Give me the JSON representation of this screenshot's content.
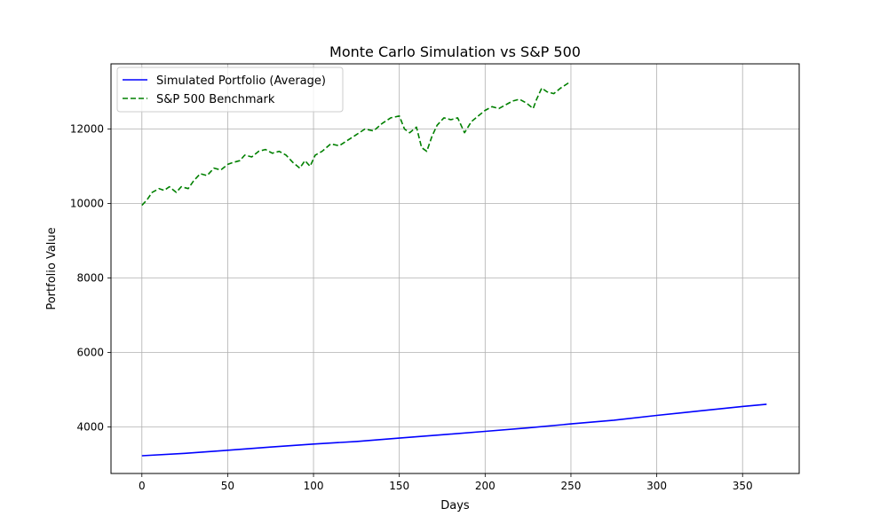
{
  "chart_data": {
    "type": "line",
    "title": "Monte Carlo Simulation vs S&P 500",
    "xlabel": "Days",
    "ylabel": "Portfolio Value",
    "xlim": [
      -18,
      383
    ],
    "ylim": [
      2750,
      13750
    ],
    "xticks": [
      0,
      50,
      100,
      150,
      200,
      250,
      300,
      350
    ],
    "yticks": [
      4000,
      6000,
      8000,
      10000,
      12000
    ],
    "grid": true,
    "legend_position": "top-left",
    "series": [
      {
        "name": "Simulated Portfolio (Average)",
        "color": "#0000ff",
        "style": "solid",
        "x": [
          0,
          25,
          50,
          75,
          100,
          125,
          150,
          175,
          200,
          225,
          250,
          275,
          300,
          325,
          350,
          364
        ],
        "y": [
          3225,
          3290,
          3375,
          3460,
          3540,
          3610,
          3700,
          3790,
          3880,
          3975,
          4080,
          4180,
          4310,
          4430,
          4550,
          4610
        ]
      },
      {
        "name": "S&P 500 Benchmark",
        "color": "#008000",
        "style": "dashed",
        "x": [
          0,
          3,
          6,
          10,
          13,
          16,
          20,
          23,
          27,
          30,
          34,
          38,
          42,
          46,
          50,
          53,
          57,
          60,
          64,
          68,
          72,
          76,
          80,
          84,
          88,
          92,
          95,
          98,
          101,
          105,
          110,
          115,
          120,
          125,
          130,
          135,
          140,
          145,
          150,
          153,
          156,
          160,
          163,
          166,
          169,
          172,
          176,
          180,
          184,
          188,
          192,
          196,
          200,
          204,
          208,
          212,
          216,
          220,
          224,
          228,
          230,
          233,
          236,
          240,
          244,
          249
        ],
        "y": [
          9950,
          10100,
          10300,
          10400,
          10350,
          10450,
          10300,
          10450,
          10400,
          10600,
          10800,
          10750,
          10950,
          10900,
          11050,
          11100,
          11150,
          11300,
          11250,
          11400,
          11450,
          11350,
          11400,
          11300,
          11100,
          10950,
          11150,
          11000,
          11300,
          11400,
          11600,
          11550,
          11700,
          11850,
          12000,
          11950,
          12150,
          12300,
          12350,
          12000,
          11900,
          12050,
          11500,
          11400,
          11800,
          12100,
          12300,
          12250,
          12300,
          11900,
          12200,
          12350,
          12500,
          12600,
          12550,
          12650,
          12750,
          12800,
          12700,
          12550,
          12800,
          13100,
          13000,
          12950,
          13100,
          13250
        ]
      }
    ]
  }
}
